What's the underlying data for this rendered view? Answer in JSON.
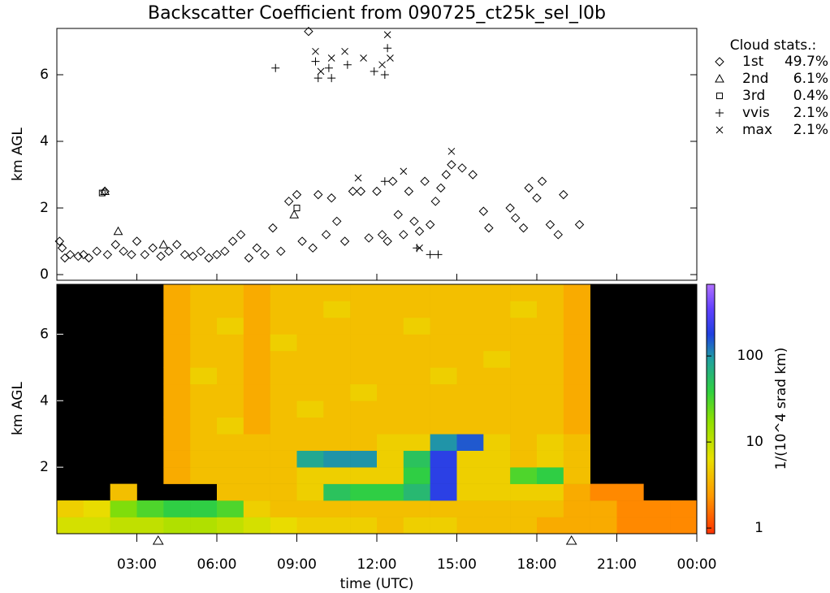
{
  "chart_data": [
    {
      "type": "scatter",
      "title": "Backscatter Coefficient from 090725_ct25k_sel_l0b",
      "ylabel": "km AGL",
      "legend_title": "Cloud stats.:",
      "xlim": [
        0,
        24
      ],
      "ylim": [
        -0.17,
        7.39
      ],
      "yticks": [
        0,
        2,
        4,
        6
      ],
      "series": [
        {
          "name": "1st",
          "stat": "49.7%",
          "marker": "diamond",
          "x": [
            0.1,
            0.2,
            0.3,
            0.5,
            0.8,
            1.0,
            1.2,
            1.5,
            1.8,
            1.9,
            2.2,
            2.5,
            2.8,
            3.0,
            3.3,
            3.6,
            3.9,
            4.2,
            4.5,
            4.8,
            5.1,
            5.4,
            5.7,
            6.0,
            6.3,
            6.6,
            6.9,
            7.2,
            7.5,
            7.8,
            8.1,
            8.4,
            8.7,
            9.0,
            9.2,
            9.44,
            9.6,
            9.8,
            10.1,
            10.3,
            10.5,
            10.8,
            11.1,
            11.4,
            11.7,
            12.0,
            12.2,
            12.4,
            12.6,
            12.8,
            13.0,
            13.2,
            13.4,
            13.6,
            13.8,
            14.0,
            14.2,
            14.4,
            14.6,
            14.8,
            15.2,
            15.6,
            16.0,
            16.2,
            17.0,
            17.2,
            17.5,
            17.7,
            18.0,
            18.2,
            18.5,
            18.8,
            19.0,
            19.6
          ],
          "values": [
            1.0,
            0.8,
            0.5,
            0.6,
            0.55,
            0.6,
            0.5,
            0.7,
            2.5,
            0.6,
            0.9,
            0.7,
            0.6,
            1.0,
            0.6,
            0.8,
            0.55,
            0.7,
            0.9,
            0.6,
            0.55,
            0.7,
            0.5,
            0.6,
            0.7,
            1.0,
            1.2,
            0.5,
            0.8,
            0.6,
            1.4,
            0.7,
            2.2,
            2.4,
            1.0,
            7.3,
            0.8,
            2.4,
            1.2,
            2.3,
            1.6,
            1.0,
            2.5,
            2.5,
            1.1,
            2.5,
            1.2,
            1.0,
            2.8,
            1.8,
            1.2,
            2.5,
            1.6,
            1.3,
            2.8,
            1.5,
            2.2,
            2.6,
            3.0,
            3.3,
            3.2,
            3.0,
            1.9,
            1.4,
            2.0,
            1.7,
            1.4,
            2.6,
            2.3,
            2.8,
            1.5,
            1.2,
            2.4,
            1.5
          ]
        },
        {
          "name": "2nd",
          "stat": "6.1%",
          "marker": "triangle",
          "x": [
            1.8,
            2.3,
            8.9,
            4.0
          ],
          "values": [
            2.5,
            1.3,
            1.8,
            0.9
          ]
        },
        {
          "name": "3rd",
          "stat": "0.4%",
          "marker": "square",
          "x": [
            1.7,
            9.0
          ],
          "values": [
            2.45,
            2.0
          ]
        },
        {
          "name": "vvis",
          "stat": "2.1%",
          "marker": "plus",
          "x": [
            8.2,
            9.7,
            9.8,
            10.2,
            10.3,
            10.9,
            11.9,
            12.3,
            12.4,
            12.3,
            13.5,
            14.0,
            14.3
          ],
          "values": [
            6.2,
            6.4,
            5.9,
            6.2,
            5.9,
            6.3,
            6.1,
            6.0,
            6.8,
            2.8,
            0.8,
            0.6,
            0.6
          ]
        },
        {
          "name": "max",
          "stat": "2.1%",
          "marker": "cross",
          "x": [
            9.7,
            9.9,
            10.3,
            10.8,
            11.5,
            12.2,
            12.4,
            12.5,
            11.3,
            13.0,
            14.8,
            13.6
          ],
          "values": [
            6.7,
            6.1,
            6.5,
            6.7,
            6.5,
            6.3,
            7.2,
            6.5,
            2.9,
            3.1,
            3.7,
            0.8
          ]
        }
      ]
    },
    {
      "type": "heatmap",
      "ylabel": "km AGL",
      "xlabel": "time (UTC)",
      "colorbar_label": "1/(10^4 srad km)",
      "xlim": [
        0,
        24
      ],
      "ylim": [
        0,
        7.5
      ],
      "yticks": [
        2,
        4,
        6
      ],
      "xticks": [
        {
          "value": 3,
          "label": "03:00"
        },
        {
          "value": 6,
          "label": "06:00"
        },
        {
          "value": 9,
          "label": "09:00"
        },
        {
          "value": 12,
          "label": "12:00"
        },
        {
          "value": 15,
          "label": "15:00"
        },
        {
          "value": 18,
          "label": "18:00"
        },
        {
          "value": 21,
          "label": "21:00"
        },
        {
          "value": 24,
          "label": "00:00"
        }
      ],
      "clim": [
        0.86,
        680
      ],
      "cticks": [
        1,
        10,
        100
      ],
      "log_color": true,
      "markers_x": [
        3.8,
        19.3
      ],
      "cell_hours": 1,
      "cell_km": 0.5,
      "rows": [
        [
          8,
          8,
          10,
          10,
          12,
          12,
          10,
          8,
          6,
          5,
          5,
          5,
          4,
          5,
          5,
          4,
          4,
          4,
          3,
          3,
          3,
          2,
          2,
          2
        ],
        [
          5,
          6,
          20,
          30,
          40,
          40,
          30,
          5,
          4,
          4,
          4,
          4,
          4,
          4,
          4,
          4,
          4,
          4,
          4,
          3,
          3,
          2,
          2,
          2
        ],
        [
          null,
          null,
          4,
          null,
          null,
          null,
          4,
          4,
          4,
          5,
          50,
          40,
          40,
          60,
          200,
          5,
          5,
          5,
          5,
          3,
          2,
          2,
          null,
          null
        ],
        [
          null,
          null,
          null,
          null,
          3,
          4,
          4,
          4,
          4,
          5,
          5,
          5,
          5,
          40,
          200,
          5,
          5,
          30,
          40,
          4,
          null,
          null,
          null,
          null
        ],
        [
          null,
          null,
          null,
          null,
          3,
          4,
          4,
          4,
          4,
          80,
          100,
          100,
          5,
          50,
          200,
          5,
          5,
          4,
          5,
          4,
          null,
          null,
          null,
          null
        ],
        [
          null,
          null,
          null,
          null,
          3,
          4,
          4,
          4,
          4,
          4,
          4,
          4,
          5,
          5,
          100,
          150,
          5,
          4,
          5,
          4,
          null,
          null,
          null,
          null
        ],
        [
          null,
          null,
          null,
          null,
          3,
          4,
          5,
          3,
          4,
          4,
          4,
          4,
          4,
          4,
          4,
          4,
          4,
          4,
          4,
          3,
          null,
          null,
          null,
          null
        ],
        [
          null,
          null,
          null,
          null,
          3,
          4,
          4,
          3,
          4,
          5,
          4,
          4,
          4,
          4,
          4,
          4,
          4,
          4,
          4,
          3,
          null,
          null,
          null,
          null
        ],
        [
          null,
          null,
          null,
          null,
          3,
          4,
          4,
          3,
          4,
          4,
          4,
          5,
          4,
          4,
          4,
          4,
          4,
          4,
          4,
          3,
          null,
          null,
          null,
          null
        ],
        [
          null,
          null,
          null,
          null,
          3,
          5,
          4,
          3,
          4,
          4,
          4,
          4,
          4,
          4,
          5,
          4,
          4,
          4,
          4,
          3,
          null,
          null,
          null,
          null
        ],
        [
          null,
          null,
          null,
          null,
          3,
          4,
          4,
          3,
          4,
          4,
          4,
          4,
          4,
          4,
          4,
          4,
          5,
          4,
          4,
          3,
          null,
          null,
          null,
          null
        ],
        [
          null,
          null,
          null,
          null,
          3,
          4,
          4,
          3,
          5,
          4,
          4,
          4,
          4,
          4,
          4,
          4,
          4,
          4,
          4,
          3,
          null,
          null,
          null,
          null
        ],
        [
          null,
          null,
          null,
          null,
          3,
          4,
          5,
          3,
          4,
          4,
          4,
          4,
          4,
          5,
          4,
          4,
          4,
          4,
          4,
          3,
          null,
          null,
          null,
          null
        ],
        [
          null,
          null,
          null,
          null,
          3,
          4,
          4,
          3,
          4,
          4,
          5,
          4,
          4,
          4,
          4,
          4,
          4,
          5,
          4,
          3,
          null,
          null,
          null,
          null
        ],
        [
          null,
          null,
          null,
          null,
          3,
          4,
          4,
          3,
          4,
          4,
          4,
          4,
          4,
          4,
          4,
          4,
          4,
          4,
          4,
          3,
          null,
          null,
          null,
          null
        ]
      ]
    }
  ]
}
